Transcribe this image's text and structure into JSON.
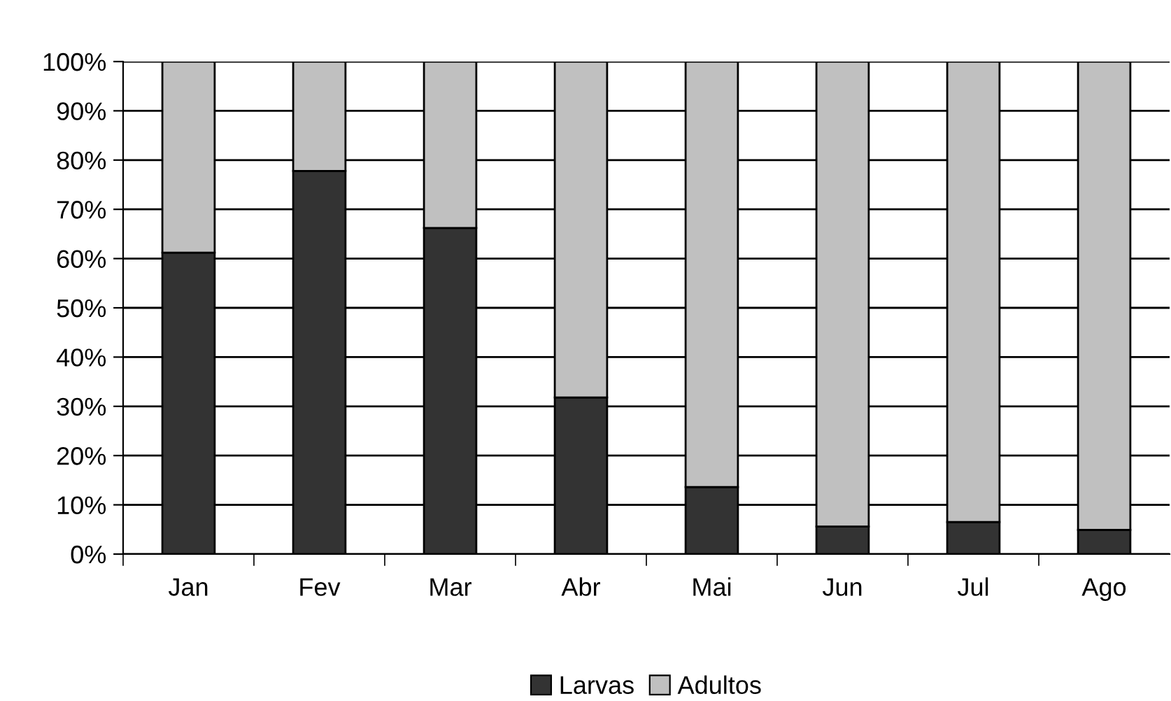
{
  "chart_data": {
    "type": "bar",
    "stacked": true,
    "categories": [
      "Jan",
      "Fev",
      "Mar",
      "Abr",
      "Mai",
      "Jun",
      "Jul",
      "Ago"
    ],
    "series": [
      {
        "name": "Larvas",
        "color": "#333333",
        "values": [
          61.2,
          77.8,
          66.2,
          31.8,
          13.6,
          5.6,
          6.5,
          4.9
        ]
      },
      {
        "name": "Adultos",
        "color": "#c0c0c0",
        "values": [
          38.8,
          22.2,
          33.8,
          68.2,
          86.4,
          94.4,
          93.5,
          95.1
        ]
      }
    ],
    "ylim": [
      0,
      100
    ],
    "yticks": [
      {
        "value": 0,
        "label": "0%"
      },
      {
        "value": 10,
        "label": "10%"
      },
      {
        "value": 20,
        "label": "20%"
      },
      {
        "value": 30,
        "label": "30%"
      },
      {
        "value": 40,
        "label": "40%"
      },
      {
        "value": 50,
        "label": "50%"
      },
      {
        "value": 60,
        "label": "60%"
      },
      {
        "value": 70,
        "label": "70%"
      },
      {
        "value": 80,
        "label": "80%"
      },
      {
        "value": 90,
        "label": "90%"
      },
      {
        "value": 100,
        "label": "100%"
      }
    ],
    "grid": "y",
    "legend": "bottom"
  }
}
